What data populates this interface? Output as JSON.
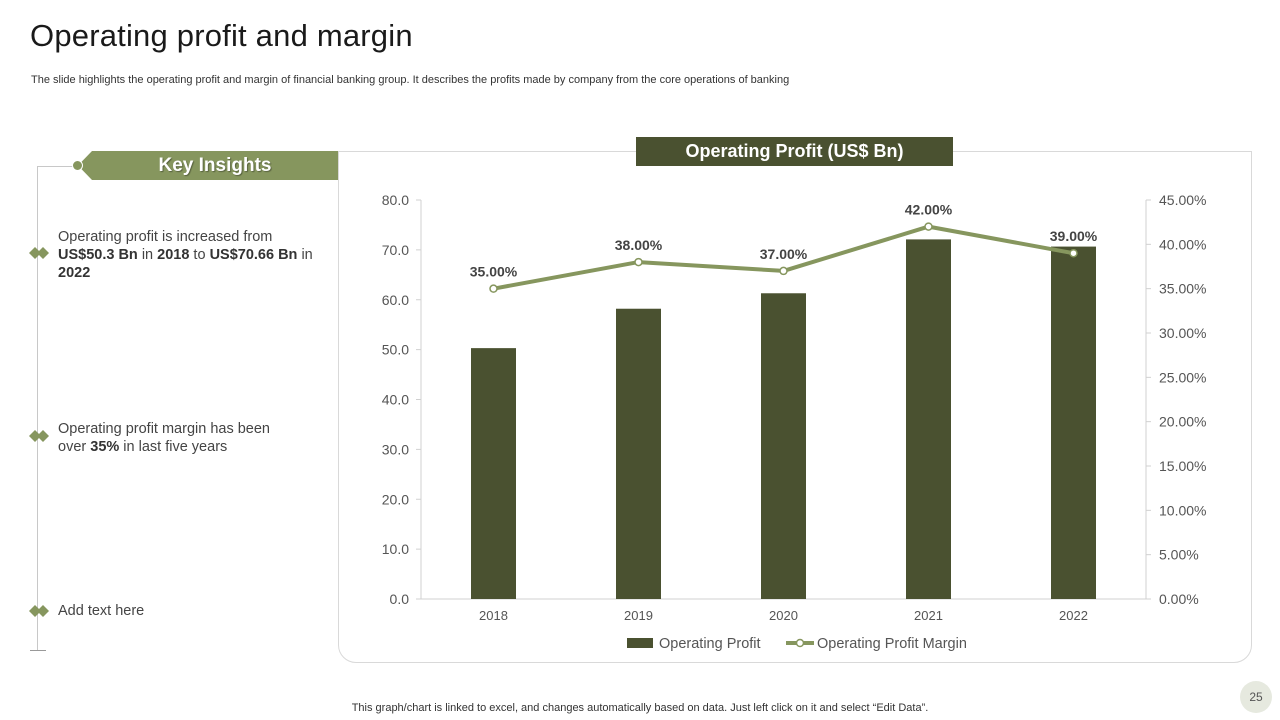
{
  "page": {
    "title": "Operating profit and margin",
    "subtitle": "The slide highlights the operating profit and margin of financial banking group. It describes the profits made by company from the core operations of banking",
    "footer_note": "This graph/chart is linked to excel,  and changes automatically based on data. Just left click on it and select “Edit Data”.",
    "page_number": "25"
  },
  "insights": {
    "header": "Key Insights",
    "item1": {
      "t1": "Operating profit is increased from ",
      "b1": "US$50.3 Bn",
      "t2": " in ",
      "b2": "2018",
      "t3": " to ",
      "b3": "US$70.66 Bn",
      "t4": " in ",
      "b4": "2022"
    },
    "item2": {
      "t1": "Operating profit margin has been over ",
      "b1": "35%",
      "t2": " in last five years"
    },
    "item3": {
      "text": "Add text here"
    }
  },
  "colors": {
    "bar": "#4a5130",
    "line": "#86965e",
    "accent": "#86965e",
    "header_bg": "#4a5130"
  },
  "chart_data": {
    "type": "bar",
    "title": "Operating Profit (US$ Bn)",
    "categories": [
      "2018",
      "2019",
      "2020",
      "2021",
      "2022"
    ],
    "series": [
      {
        "name": "Operating Profit",
        "type": "bar",
        "axis": "left",
        "values": [
          50.3,
          58.2,
          61.3,
          72.1,
          70.66
        ]
      },
      {
        "name": "Operating Profit Margin",
        "type": "line",
        "axis": "right",
        "values": [
          35,
          38,
          37,
          42,
          39
        ],
        "labels": [
          "35.00%",
          "38.00%",
          "37.00%",
          "42.00%",
          "39.00%"
        ]
      }
    ],
    "y_left": {
      "min": 0,
      "max": 80,
      "step": 10,
      "ticks": [
        "0.0",
        "10.0",
        "20.0",
        "30.0",
        "40.0",
        "50.0",
        "60.0",
        "70.0",
        "80.0"
      ]
    },
    "y_right": {
      "min": 0,
      "max": 45,
      "step": 5,
      "ticks": [
        "0.00%",
        "5.00%",
        "10.00%",
        "15.00%",
        "20.00%",
        "25.00%",
        "30.00%",
        "35.00%",
        "40.00%",
        "45.00%"
      ]
    },
    "legend": [
      "Operating Profit",
      "Operating Profit Margin"
    ],
    "legend_position": "bottom",
    "grid": false
  }
}
